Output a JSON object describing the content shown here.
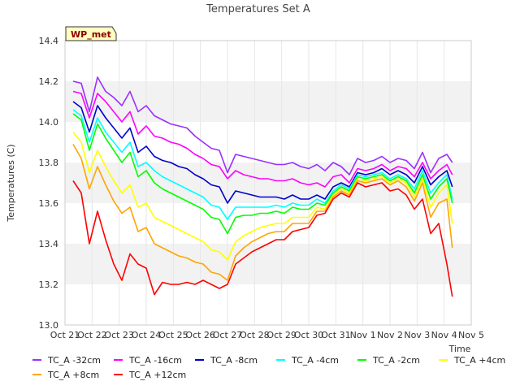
{
  "chart_data": {
    "type": "line",
    "title": "Temperatures Set A",
    "xlabel": "Time",
    "ylabel": "Temperatures (C)",
    "badge": "WP_met",
    "ylim": [
      13.0,
      14.4
    ],
    "yticks": [
      "13.0",
      "13.2",
      "13.4",
      "13.6",
      "13.8",
      "14.0",
      "14.2",
      "14.4"
    ],
    "xlim": [
      0,
      15
    ],
    "xticks": [
      "Oct 21",
      "Oct 22",
      "Oct 23",
      "Oct 24",
      "Oct 25",
      "Oct 26",
      "Oct 27",
      "Oct 28",
      "Oct 29",
      "Oct 30",
      "Oct 31",
      "Nov 1",
      "Nov 2",
      "Nov 3",
      "Nov 4",
      "Nov 5"
    ],
    "grid": true,
    "band_colors": [
      "#ffffff",
      "#f2f2f2"
    ],
    "legend_position": "bottom",
    "x": [
      0.3,
      0.6,
      0.9,
      1.2,
      1.5,
      1.8,
      2.1,
      2.4,
      2.7,
      3.0,
      3.3,
      3.6,
      3.9,
      4.2,
      4.5,
      4.8,
      5.1,
      5.4,
      5.7,
      6.0,
      6.3,
      6.6,
      6.9,
      7.2,
      7.5,
      7.8,
      8.1,
      8.4,
      8.7,
      9.0,
      9.3,
      9.6,
      9.9,
      10.2,
      10.5,
      10.8,
      11.1,
      11.4,
      11.7,
      12.0,
      12.3,
      12.6,
      12.9,
      13.2,
      13.5,
      13.8,
      14.1,
      14.3
    ],
    "series": [
      {
        "name": "TC_A -32cm",
        "color": "#9b30ff",
        "values": [
          14.2,
          14.19,
          14.05,
          14.22,
          14.15,
          14.12,
          14.08,
          14.15,
          14.05,
          14.08,
          14.03,
          14.01,
          13.99,
          13.98,
          13.97,
          13.93,
          13.9,
          13.87,
          13.86,
          13.75,
          13.84,
          13.83,
          13.82,
          13.81,
          13.8,
          13.79,
          13.79,
          13.8,
          13.78,
          13.77,
          13.79,
          13.76,
          13.8,
          13.78,
          13.74,
          13.82,
          13.8,
          13.81,
          13.83,
          13.8,
          13.82,
          13.81,
          13.77,
          13.85,
          13.75,
          13.82,
          13.84,
          13.8
        ]
      },
      {
        "name": "TC_A -16cm",
        "color": "#ff00ff",
        "values": [
          14.15,
          14.14,
          14.02,
          14.14,
          14.1,
          14.05,
          14.0,
          14.05,
          13.94,
          13.98,
          13.93,
          13.92,
          13.9,
          13.89,
          13.87,
          13.84,
          13.82,
          13.79,
          13.78,
          13.72,
          13.76,
          13.74,
          13.73,
          13.72,
          13.72,
          13.71,
          13.71,
          13.72,
          13.7,
          13.69,
          13.7,
          13.68,
          13.73,
          13.74,
          13.7,
          13.77,
          13.76,
          13.77,
          13.79,
          13.76,
          13.78,
          13.77,
          13.73,
          13.8,
          13.72,
          13.76,
          13.79,
          13.74
        ]
      },
      {
        "name": "TC_A -8cm",
        "color": "#0000cd",
        "values": [
          14.1,
          14.07,
          13.95,
          14.08,
          14.02,
          13.97,
          13.92,
          13.97,
          13.85,
          13.88,
          13.83,
          13.81,
          13.8,
          13.78,
          13.77,
          13.74,
          13.72,
          13.69,
          13.68,
          13.6,
          13.66,
          13.65,
          13.64,
          13.63,
          13.63,
          13.63,
          13.62,
          13.64,
          13.62,
          13.62,
          13.64,
          13.62,
          13.68,
          13.7,
          13.68,
          13.75,
          13.74,
          13.75,
          13.77,
          13.74,
          13.76,
          13.74,
          13.7,
          13.78,
          13.69,
          13.73,
          13.76,
          13.68
        ]
      },
      {
        "name": "TC_A -4cm",
        "color": "#00ffff",
        "values": [
          14.06,
          14.03,
          13.9,
          14.02,
          13.95,
          13.9,
          13.85,
          13.9,
          13.78,
          13.8,
          13.76,
          13.73,
          13.71,
          13.69,
          13.67,
          13.65,
          13.63,
          13.59,
          13.58,
          13.52,
          13.58,
          13.58,
          13.58,
          13.58,
          13.58,
          13.59,
          13.58,
          13.6,
          13.59,
          13.59,
          13.62,
          13.6,
          13.66,
          13.69,
          13.67,
          13.74,
          13.73,
          13.74,
          13.75,
          13.72,
          13.74,
          13.72,
          13.67,
          13.76,
          13.65,
          13.7,
          13.74,
          13.62
        ]
      },
      {
        "name": "TC_A -2cm",
        "color": "#00ff00",
        "values": [
          14.04,
          14.01,
          13.86,
          13.99,
          13.92,
          13.86,
          13.8,
          13.85,
          13.73,
          13.76,
          13.7,
          13.67,
          13.65,
          13.63,
          13.61,
          13.59,
          13.57,
          13.53,
          13.52,
          13.45,
          13.53,
          13.54,
          13.54,
          13.55,
          13.55,
          13.56,
          13.55,
          13.58,
          13.57,
          13.57,
          13.6,
          13.59,
          13.65,
          13.68,
          13.66,
          13.73,
          13.72,
          13.73,
          13.74,
          13.71,
          13.73,
          13.71,
          13.65,
          13.74,
          13.62,
          13.68,
          13.72,
          13.6
        ]
      },
      {
        "name": "TC_A +4cm",
        "color": "#ffff00",
        "values": [
          13.95,
          13.9,
          13.75,
          13.86,
          13.78,
          13.71,
          13.65,
          13.69,
          13.58,
          13.6,
          13.53,
          13.51,
          13.49,
          13.47,
          13.45,
          13.43,
          13.41,
          13.37,
          13.36,
          13.32,
          13.41,
          13.44,
          13.46,
          13.48,
          13.49,
          13.5,
          13.5,
          13.53,
          13.53,
          13.53,
          13.58,
          13.57,
          13.64,
          13.67,
          13.65,
          13.72,
          13.71,
          13.72,
          13.73,
          13.7,
          13.72,
          13.7,
          13.63,
          13.72,
          13.58,
          13.65,
          13.69,
          13.5
        ]
      },
      {
        "name": "TC_A +8cm",
        "color": "#ffa500",
        "values": [
          13.89,
          13.82,
          13.67,
          13.78,
          13.69,
          13.61,
          13.55,
          13.58,
          13.46,
          13.48,
          13.4,
          13.38,
          13.36,
          13.34,
          13.33,
          13.31,
          13.3,
          13.26,
          13.25,
          13.22,
          13.34,
          13.38,
          13.41,
          13.43,
          13.45,
          13.46,
          13.46,
          13.5,
          13.5,
          13.5,
          13.56,
          13.56,
          13.63,
          13.66,
          13.64,
          13.71,
          13.7,
          13.71,
          13.72,
          13.69,
          13.71,
          13.68,
          13.61,
          13.7,
          13.53,
          13.6,
          13.62,
          13.38
        ]
      },
      {
        "name": "TC_A +12cm",
        "color": "#ff0000",
        "values": [
          13.71,
          13.65,
          13.4,
          13.56,
          13.42,
          13.3,
          13.22,
          13.35,
          13.3,
          13.28,
          13.15,
          13.21,
          13.2,
          13.2,
          13.21,
          13.2,
          13.22,
          13.2,
          13.18,
          13.2,
          13.3,
          13.33,
          13.36,
          13.38,
          13.4,
          13.42,
          13.42,
          13.46,
          13.47,
          13.48,
          13.54,
          13.55,
          13.62,
          13.65,
          13.63,
          13.7,
          13.68,
          13.69,
          13.7,
          13.66,
          13.67,
          13.64,
          13.57,
          13.62,
          13.45,
          13.5,
          13.3,
          13.14
        ]
      }
    ]
  }
}
